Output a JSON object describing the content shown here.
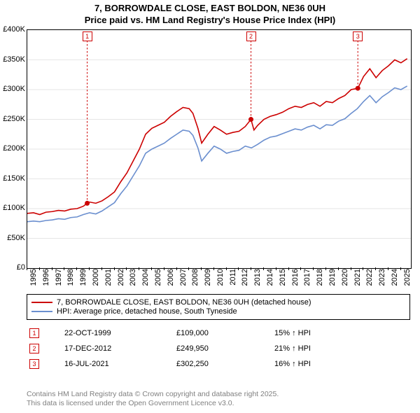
{
  "title_line1": "7, BORROWDALE CLOSE, EAST BOLDON, NE36 0UH",
  "title_line2": "Price paid vs. HM Land Registry's House Price Index (HPI)",
  "chart": {
    "type": "line",
    "background_color": "#ffffff",
    "border_color": "#000000",
    "x_min": 1995,
    "x_max": 2025.8,
    "y_min": 0,
    "y_max": 400000,
    "ytick_step": 50000,
    "ytick_labels": [
      "£0",
      "£50K",
      "£100K",
      "£150K",
      "£200K",
      "£250K",
      "£300K",
      "£350K",
      "£400K"
    ],
    "xticks": [
      1995,
      1996,
      1997,
      1998,
      1999,
      2000,
      2001,
      2002,
      2003,
      2004,
      2005,
      2006,
      2007,
      2008,
      2009,
      2010,
      2011,
      2012,
      2013,
      2014,
      2015,
      2016,
      2017,
      2018,
      2019,
      2020,
      2021,
      2022,
      2023,
      2024,
      2025
    ],
    "grid_minor_color": "#e6e6e6",
    "series": [
      {
        "name": "price_paid",
        "color": "#cc0000",
        "width": 1.6,
        "data": [
          [
            1995,
            92000
          ],
          [
            1995.5,
            93000
          ],
          [
            1996,
            90000
          ],
          [
            1996.5,
            94000
          ],
          [
            1997,
            95000
          ],
          [
            1997.5,
            97000
          ],
          [
            1998,
            96000
          ],
          [
            1998.5,
            99000
          ],
          [
            1999,
            100000
          ],
          [
            1999.5,
            104000
          ],
          [
            1999.81,
            109000
          ],
          [
            2000,
            111000
          ],
          [
            2000.5,
            109000
          ],
          [
            2001,
            113000
          ],
          [
            2001.5,
            120000
          ],
          [
            2002,
            128000
          ],
          [
            2002.5,
            145000
          ],
          [
            2003,
            160000
          ],
          [
            2003.5,
            180000
          ],
          [
            2004,
            200000
          ],
          [
            2004.5,
            225000
          ],
          [
            2005,
            235000
          ],
          [
            2005.5,
            240000
          ],
          [
            2006,
            245000
          ],
          [
            2006.5,
            255000
          ],
          [
            2007,
            263000
          ],
          [
            2007.5,
            270000
          ],
          [
            2008,
            268000
          ],
          [
            2008.3,
            260000
          ],
          [
            2008.7,
            235000
          ],
          [
            2009,
            210000
          ],
          [
            2009.5,
            225000
          ],
          [
            2010,
            238000
          ],
          [
            2010.5,
            232000
          ],
          [
            2011,
            225000
          ],
          [
            2011.5,
            228000
          ],
          [
            2012,
            230000
          ],
          [
            2012.5,
            238000
          ],
          [
            2012.96,
            249950
          ],
          [
            2013.2,
            232000
          ],
          [
            2013.5,
            240000
          ],
          [
            2014,
            250000
          ],
          [
            2014.5,
            255000
          ],
          [
            2015,
            258000
          ],
          [
            2015.5,
            262000
          ],
          [
            2016,
            268000
          ],
          [
            2016.5,
            272000
          ],
          [
            2017,
            270000
          ],
          [
            2017.5,
            275000
          ],
          [
            2018,
            278000
          ],
          [
            2018.5,
            272000
          ],
          [
            2019,
            280000
          ],
          [
            2019.5,
            278000
          ],
          [
            2020,
            285000
          ],
          [
            2020.5,
            290000
          ],
          [
            2021,
            300000
          ],
          [
            2021.54,
            302250
          ],
          [
            2022,
            322000
          ],
          [
            2022.5,
            335000
          ],
          [
            2023,
            320000
          ],
          [
            2023.5,
            332000
          ],
          [
            2024,
            340000
          ],
          [
            2024.5,
            350000
          ],
          [
            2025,
            345000
          ],
          [
            2025.5,
            352000
          ]
        ]
      },
      {
        "name": "hpi",
        "color": "#6b8fcf",
        "width": 1.6,
        "data": [
          [
            1995,
            78000
          ],
          [
            1995.5,
            79000
          ],
          [
            1996,
            78000
          ],
          [
            1996.5,
            80000
          ],
          [
            1997,
            81000
          ],
          [
            1997.5,
            83000
          ],
          [
            1998,
            82000
          ],
          [
            1998.5,
            85000
          ],
          [
            1999,
            86000
          ],
          [
            1999.5,
            90000
          ],
          [
            2000,
            93000
          ],
          [
            2000.5,
            91000
          ],
          [
            2001,
            96000
          ],
          [
            2001.5,
            103000
          ],
          [
            2002,
            110000
          ],
          [
            2002.5,
            125000
          ],
          [
            2003,
            138000
          ],
          [
            2003.5,
            155000
          ],
          [
            2004,
            172000
          ],
          [
            2004.5,
            193000
          ],
          [
            2005,
            200000
          ],
          [
            2005.5,
            205000
          ],
          [
            2006,
            210000
          ],
          [
            2006.5,
            218000
          ],
          [
            2007,
            225000
          ],
          [
            2007.5,
            232000
          ],
          [
            2008,
            230000
          ],
          [
            2008.3,
            223000
          ],
          [
            2008.7,
            202000
          ],
          [
            2009,
            180000
          ],
          [
            2009.5,
            193000
          ],
          [
            2010,
            205000
          ],
          [
            2010.5,
            200000
          ],
          [
            2011,
            193000
          ],
          [
            2011.5,
            196000
          ],
          [
            2012,
            198000
          ],
          [
            2012.5,
            205000
          ],
          [
            2013,
            202000
          ],
          [
            2013.5,
            208000
          ],
          [
            2014,
            215000
          ],
          [
            2014.5,
            220000
          ],
          [
            2015,
            222000
          ],
          [
            2015.5,
            226000
          ],
          [
            2016,
            230000
          ],
          [
            2016.5,
            234000
          ],
          [
            2017,
            232000
          ],
          [
            2017.5,
            237000
          ],
          [
            2018,
            240000
          ],
          [
            2018.5,
            234000
          ],
          [
            2019,
            241000
          ],
          [
            2019.5,
            240000
          ],
          [
            2020,
            247000
          ],
          [
            2020.5,
            251000
          ],
          [
            2021,
            260000
          ],
          [
            2021.5,
            268000
          ],
          [
            2022,
            280000
          ],
          [
            2022.5,
            290000
          ],
          [
            2023,
            278000
          ],
          [
            2023.5,
            288000
          ],
          [
            2024,
            295000
          ],
          [
            2024.5,
            303000
          ],
          [
            2025,
            300000
          ],
          [
            2025.5,
            306000
          ]
        ]
      }
    ],
    "markers": [
      {
        "num": "1",
        "x": 1999.81,
        "y": 109000
      },
      {
        "num": "2",
        "x": 2012.96,
        "y": 249950
      },
      {
        "num": "3",
        "x": 2021.54,
        "y": 302250
      }
    ]
  },
  "legend": {
    "items": [
      {
        "color": "#cc0000",
        "label": "7, BORROWDALE CLOSE, EAST BOLDON, NE36 0UH (detached house)"
      },
      {
        "color": "#6b8fcf",
        "label": "HPI: Average price, detached house, South Tyneside"
      }
    ]
  },
  "marker_rows": [
    {
      "num": "1",
      "date": "22-OCT-1999",
      "price": "£109,000",
      "hpi": "15% ↑ HPI"
    },
    {
      "num": "2",
      "date": "17-DEC-2012",
      "price": "£249,950",
      "hpi": "21% ↑ HPI"
    },
    {
      "num": "3",
      "date": "16-JUL-2021",
      "price": "£302,250",
      "hpi": "16% ↑ HPI"
    }
  ],
  "footer_line1": "Contains HM Land Registry data © Crown copyright and database right 2025.",
  "footer_line2": "This data is licensed under the Open Government Licence v3.0."
}
